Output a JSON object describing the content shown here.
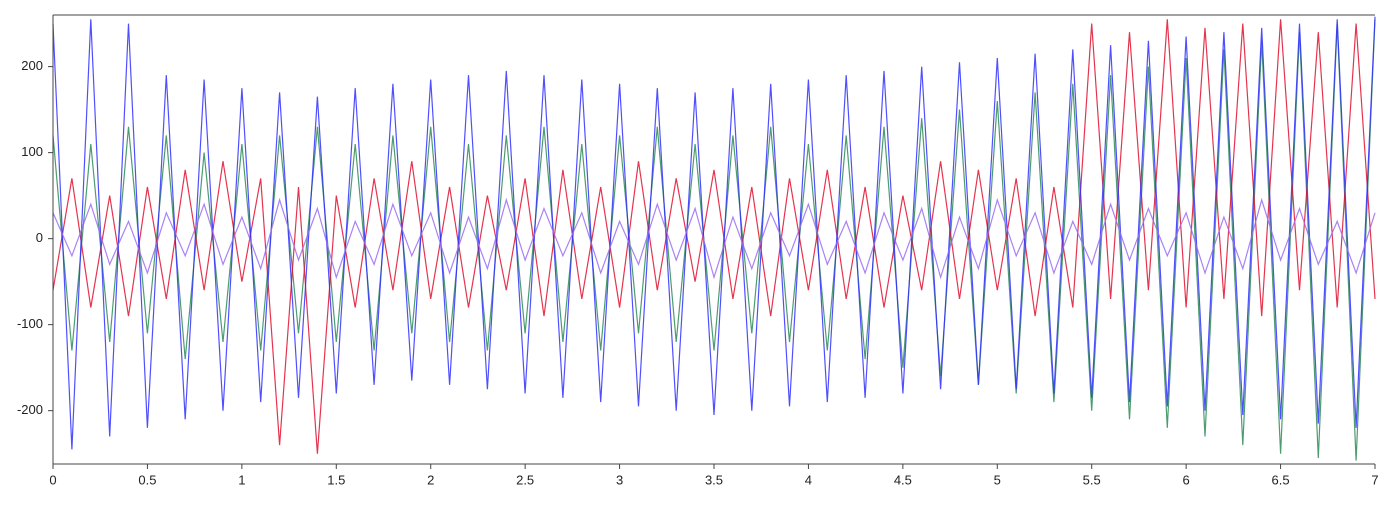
{
  "chart_data": {
    "type": "line",
    "x": [
      0,
      0.1,
      0.2,
      0.3,
      0.4,
      0.5,
      0.6,
      0.7,
      0.8,
      0.9,
      1,
      1.1,
      1.2,
      1.3,
      1.4,
      1.5,
      1.6,
      1.7,
      1.8,
      1.9,
      2,
      2.1,
      2.2,
      2.3,
      2.4,
      2.5,
      2.6,
      2.7,
      2.8,
      2.9,
      3,
      3.1,
      3.2,
      3.3,
      3.4,
      3.5,
      3.6,
      3.7,
      3.8,
      3.9,
      4,
      4.1,
      4.2,
      4.3,
      4.4,
      4.5,
      4.6,
      4.7,
      4.8,
      4.9,
      5,
      5.1,
      5.2,
      5.3,
      5.4,
      5.5,
      5.6,
      5.7,
      5.8,
      5.9,
      6,
      6.1,
      6.2,
      6.3,
      6.4,
      6.5,
      6.6,
      6.7,
      6.8,
      6.9,
      7
    ],
    "series": [
      {
        "color": "#2e8b57",
        "values": [
          120,
          -130,
          110,
          -120,
          130,
          -110,
          120,
          -140,
          100,
          -120,
          110,
          -130,
          120,
          -110,
          130,
          -120,
          110,
          -130,
          120,
          -110,
          130,
          -120,
          110,
          -130,
          120,
          -110,
          130,
          -120,
          110,
          -130,
          120,
          -110,
          130,
          -120,
          110,
          -130,
          120,
          -110,
          130,
          -120,
          110,
          -130,
          120,
          -140,
          130,
          -150,
          140,
          -160,
          150,
          -170,
          160,
          -180,
          170,
          -190,
          180,
          -200,
          190,
          -210,
          200,
          -220,
          210,
          -230,
          220,
          -240,
          230,
          -250,
          240,
          -255,
          250,
          -258,
          255
        ]
      },
      {
        "color": "#e0102f",
        "values": [
          -60,
          70,
          -80,
          50,
          -90,
          60,
          -70,
          80,
          -60,
          90,
          -50,
          70,
          -240,
          60,
          -250,
          50,
          -80,
          70,
          -60,
          90,
          -70,
          60,
          -80,
          50,
          -60,
          70,
          -90,
          80,
          -70,
          60,
          -80,
          90,
          -60,
          70,
          -50,
          80,
          -70,
          60,
          -90,
          70,
          -60,
          80,
          -70,
          60,
          -80,
          50,
          -60,
          90,
          -70,
          80,
          -60,
          70,
          -90,
          60,
          -80,
          250,
          -70,
          240,
          -60,
          255,
          -80,
          245,
          -70,
          250,
          -90,
          255,
          -60,
          240,
          -80,
          250,
          -70
        ]
      },
      {
        "color": "#3030ff",
        "values": [
          250,
          -245,
          255,
          -230,
          250,
          -220,
          190,
          -210,
          185,
          -200,
          175,
          -190,
          170,
          -185,
          165,
          -180,
          175,
          -170,
          180,
          -165,
          185,
          -170,
          190,
          -175,
          195,
          -180,
          190,
          -185,
          185,
          -190,
          180,
          -195,
          175,
          -200,
          170,
          -205,
          175,
          -200,
          180,
          -195,
          185,
          -190,
          190,
          -185,
          195,
          -180,
          200,
          -175,
          205,
          -170,
          210,
          -175,
          215,
          -180,
          220,
          -185,
          225,
          -190,
          230,
          -195,
          235,
          -200,
          240,
          -205,
          245,
          -210,
          250,
          -215,
          255,
          -220,
          258
        ]
      },
      {
        "color": "#9a6cf5",
        "values": [
          30,
          -20,
          40,
          -30,
          20,
          -40,
          30,
          -20,
          40,
          -30,
          25,
          -35,
          45,
          -25,
          35,
          -45,
          20,
          -30,
          40,
          -20,
          30,
          -40,
          25,
          -35,
          45,
          -25,
          35,
          -20,
          30,
          -40,
          20,
          -30,
          40,
          -25,
          35,
          -45,
          25,
          -35,
          30,
          -20,
          40,
          -30,
          20,
          -40,
          30,
          -25,
          35,
          -45,
          25,
          -35,
          45,
          -20,
          30,
          -40,
          20,
          -30,
          40,
          -25,
          35,
          -20,
          30,
          -40,
          25,
          -35,
          45,
          -25,
          35,
          -30,
          20,
          -40,
          30
        ]
      }
    ],
    "xlim": [
      0,
      7
    ],
    "xticks": [
      0,
      0.5,
      1,
      1.5,
      2,
      2.5,
      3,
      3.5,
      4,
      4.5,
      5,
      5.5,
      6,
      6.5,
      7
    ],
    "ylim": [
      -262,
      260
    ],
    "yticks": [
      -200,
      -100,
      0,
      100,
      200
    ]
  }
}
